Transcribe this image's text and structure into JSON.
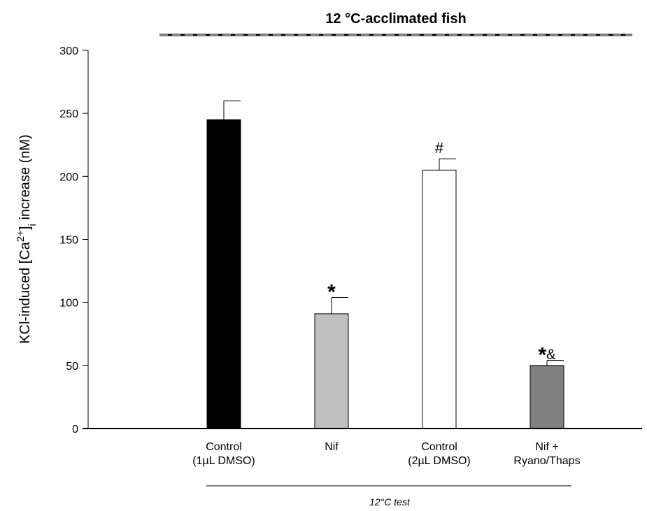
{
  "chart_data": {
    "type": "bar",
    "title": "12 °C-acclimated fish",
    "ylabel": {
      "pre": "KCl-induced [Ca",
      "sup": "2+",
      "mid": "]",
      "sub": "i",
      "post": " increase (nM)"
    },
    "group_label": "12°C test",
    "ylim": [
      0,
      300
    ],
    "yticks": [
      0,
      50,
      100,
      150,
      200,
      250,
      300
    ],
    "categories": [
      [
        "Control",
        "(1µL DMSO)"
      ],
      [
        "Nif"
      ],
      [
        "Control",
        "(2µL DMSO)"
      ],
      [
        "Nif +",
        "Ryano/Thaps"
      ]
    ],
    "values": [
      245,
      91,
      205,
      50
    ],
    "errors": [
      15,
      13,
      9,
      4
    ],
    "colors": [
      "#000000",
      "#c0c0c0",
      "#ffffff",
      "#808080"
    ],
    "annotations": [
      "",
      "*",
      "#",
      "*&"
    ]
  }
}
